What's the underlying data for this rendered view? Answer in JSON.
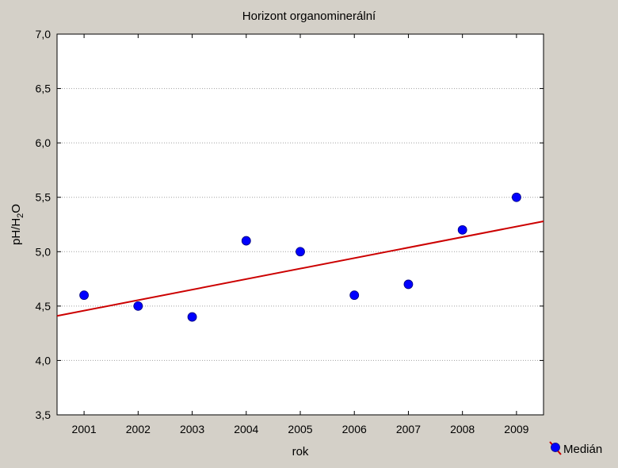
{
  "chart_data": {
    "type": "scatter",
    "title": "Horizont organominerální",
    "xlabel": "rok",
    "ylabel": {
      "prefix": "pH/H",
      "subscript": "2",
      "suffix": "O"
    },
    "x": [
      2001,
      2002,
      2003,
      2004,
      2005,
      2006,
      2007,
      2008,
      2009
    ],
    "x_tick_labels": [
      "2001",
      "2002",
      "2003",
      "2004",
      "2005",
      "2006",
      "2007",
      "2008",
      "2009"
    ],
    "xlim": [
      2000.5,
      2009.5
    ],
    "ylim": [
      3.5,
      7.0
    ],
    "y_ticks": [
      3.5,
      4.0,
      4.5,
      5.0,
      5.5,
      6.0,
      6.5,
      7.0
    ],
    "y_tick_labels": [
      "3,5",
      "4,0",
      "4,5",
      "5,0",
      "5,5",
      "6,0",
      "6,5",
      "7,0"
    ],
    "grid": true,
    "series": [
      {
        "name": "Medián",
        "values": [
          4.6,
          4.5,
          4.4,
          5.1,
          5.0,
          4.6,
          4.7,
          5.2,
          5.5
        ],
        "color": "#0000ff"
      }
    ],
    "trendline": {
      "color": "#cc0000"
    },
    "legend": {
      "position": "bottom-right",
      "label": "Medián"
    },
    "colors": {
      "background": "#d4d0c8",
      "plot_background": "#ffffff",
      "grid": "#a0a0a0",
      "marker": "#0000ff",
      "trend": "#cc0000"
    }
  }
}
